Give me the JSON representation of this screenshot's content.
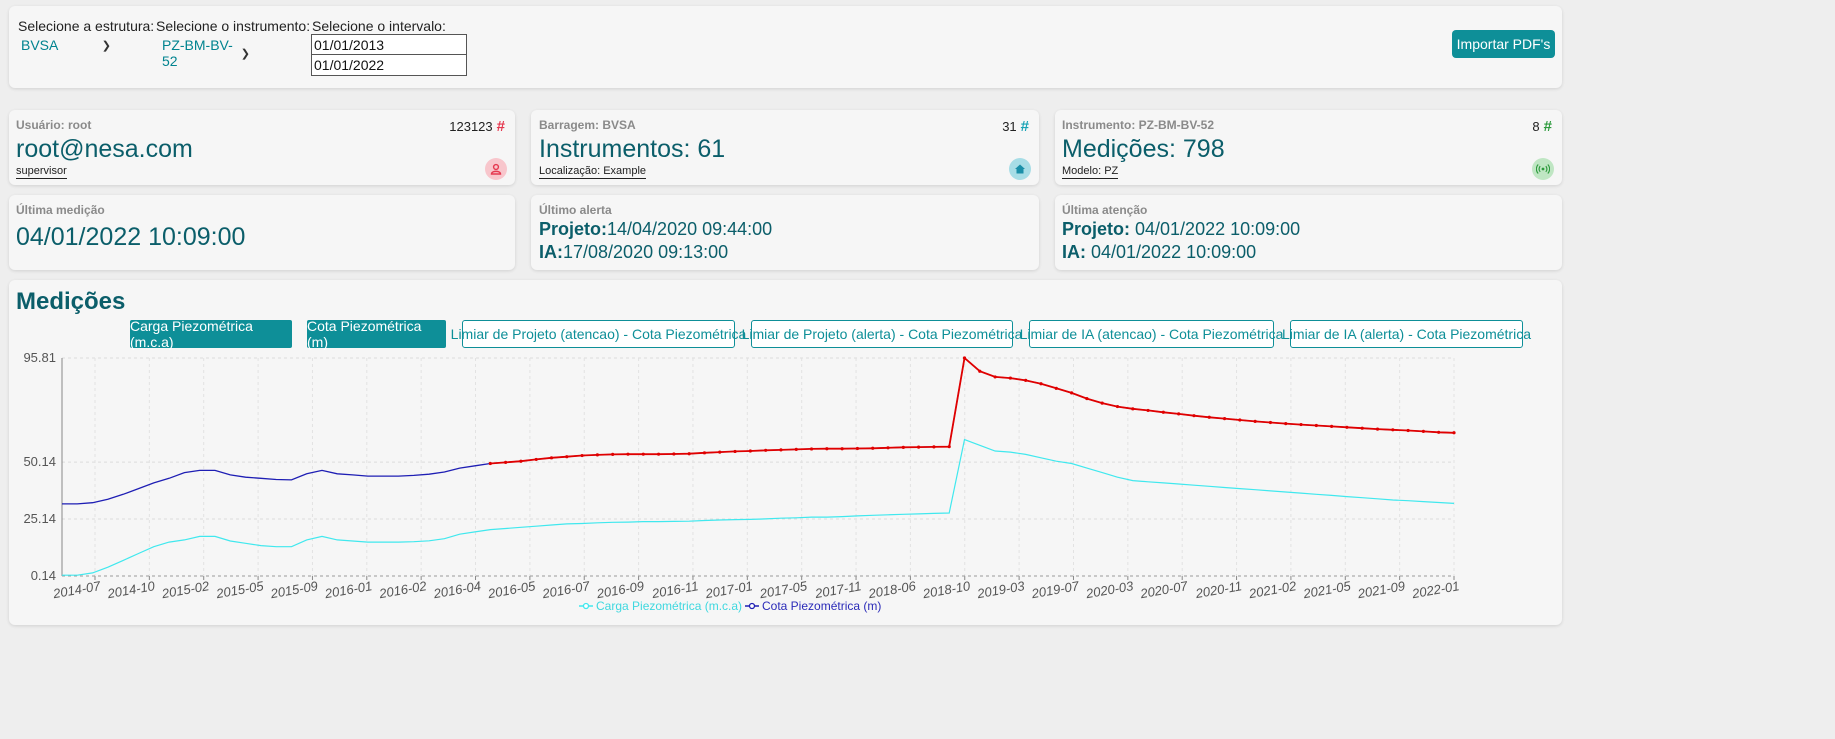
{
  "filters": {
    "estrutura_label": "Selecione a estrutura:",
    "estrutura_value": "BVSA",
    "instrumento_label": "Selecione o instrumento:",
    "instrumento_value": "PZ-BM-BV-52",
    "intervalo_label": "Selecione o intervalo:",
    "date_start": "01/01/2013",
    "date_end": "01/01/2022",
    "import_button": "Importar PDF's"
  },
  "cards": {
    "user": {
      "label": "Usuário: root",
      "count": "123123",
      "value": "root@nesa.com",
      "sub": "supervisor"
    },
    "dam": {
      "label": "Barragem: BVSA",
      "count": "31",
      "value": "Instrumentos: 61",
      "sub": "Localização: Example"
    },
    "instrument": {
      "label": "Instrumento: PZ-BM-BV-52",
      "count": "8",
      "value": "Medições: 798",
      "sub": "Modelo: PZ"
    },
    "last_measurement": {
      "label": "Última medição",
      "value": "04/01/2022 10:09:00"
    },
    "last_alert": {
      "label": "Último alerta",
      "projeto_key": "Projeto:",
      "projeto_value": "14/04/2020 09:44:00",
      "ia_key": "IA:",
      "ia_value": "17/08/2020 09:13:00"
    },
    "last_attention": {
      "label": "Última atenção",
      "projeto_key": "Projeto:",
      "projeto_value": " 04/01/2022 10:09:00",
      "ia_key": "IA:",
      "ia_value": " 04/01/2022 10:09:00"
    }
  },
  "chart_section": {
    "title": "Medições",
    "toggles": [
      {
        "label": "Carga Piezométrica (m.c.a)",
        "active": true
      },
      {
        "label": "Cota Piezométrica (m)",
        "active": true
      },
      {
        "label": "Limiar de Projeto (atencao) - Cota Piezométrica",
        "active": false
      },
      {
        "label": "Limiar de Projeto (alerta) - Cota Piezométrica",
        "active": false
      },
      {
        "label": "Limiar de IA (atencao) - Cota Piezométrica",
        "active": false
      },
      {
        "label": "Limiar de IA (alerta) - Cota Piezométrica",
        "active": false
      }
    ]
  },
  "colors": {
    "accent": "#0e8f98",
    "carga": "#40e8ee",
    "cota": "#1e1eb4",
    "alert": "#e00000"
  },
  "chart_data": {
    "type": "line",
    "y_ticks": [
      "95.81",
      "50.14",
      "25.14",
      "0.14"
    ],
    "ylim": [
      0.14,
      95.81
    ],
    "x_ticks": [
      "2014-07",
      "2014-10",
      "2015-02",
      "2015-05",
      "2015-09",
      "2016-01",
      "2016-02",
      "2016-04",
      "2016-05",
      "2016-07",
      "2016-09",
      "2016-11",
      "2017-01",
      "2017-05",
      "2017-11",
      "2018-06",
      "2018-10",
      "2019-03",
      "2019-07",
      "2020-03",
      "2020-07",
      "2020-11",
      "2021-02",
      "2021-05",
      "2021-09",
      "2022-01"
    ],
    "grid": true,
    "legend": "bottom",
    "series": [
      {
        "name": "Carga Piezométrica (m.c.a)",
        "values": [
          0.5,
          0.5,
          1.5,
          4,
          7,
          10,
          13,
          15,
          16,
          17.5,
          17.5,
          15.5,
          14.5,
          13.5,
          13,
          13,
          16,
          17.5,
          16,
          15.5,
          15,
          15,
          15,
          15.2,
          15.6,
          16.5,
          18.5,
          19.5,
          20.5,
          21,
          21.5,
          22,
          22.5,
          23,
          23.2,
          23.5,
          23.7,
          23.8,
          24,
          24,
          24.1,
          24.2,
          24.5,
          24.7,
          24.9,
          25,
          25.2,
          25.5,
          25.7,
          26,
          26,
          26.2,
          26.5,
          26.8,
          27,
          27.2,
          27.4,
          27.6,
          27.8,
          60,
          57.5,
          55,
          54.5,
          53.5,
          52,
          50.5,
          49.5,
          47.5,
          45.5,
          43.5,
          42,
          41.5,
          41,
          40.5,
          40,
          39.5,
          39,
          38.5,
          38,
          37.5,
          37,
          36.5,
          36,
          35.5,
          35,
          34.5,
          34,
          33.5,
          33.2,
          32.8,
          32.4,
          32
        ]
      },
      {
        "name": "Cota Piezométrica (m)",
        "values": [
          31.8,
          31.8,
          32.3,
          33.8,
          36,
          38.5,
          41,
          43,
          45.5,
          46.5,
          46.5,
          44.5,
          43.5,
          43,
          42.5,
          42.3,
          45,
          46.5,
          45,
          44.5,
          44,
          44,
          44,
          44.3,
          44.8,
          45.8,
          47.5,
          48.5,
          49.5,
          50,
          50.5,
          51.3,
          52,
          52.5,
          53,
          53.3,
          53.5,
          53.6,
          53.6,
          53.6,
          53.7,
          53.8,
          54.2,
          54.5,
          54.8,
          55,
          55.3,
          55.5,
          55.7,
          55.9,
          56,
          56,
          56.1,
          56.2,
          56.4,
          56.6,
          56.7,
          56.8,
          56.9,
          95.8,
          90,
          87.5,
          87,
          86,
          84.5,
          82.5,
          80.5,
          78,
          76,
          74.5,
          73.5,
          72.8,
          72,
          71.3,
          70.5,
          69.8,
          69.2,
          68.6,
          68,
          67.5,
          67,
          66.6,
          66.2,
          65.8,
          65.4,
          65,
          64.6,
          64.3,
          64,
          63.6,
          63.2,
          63
        ]
      }
    ]
  }
}
